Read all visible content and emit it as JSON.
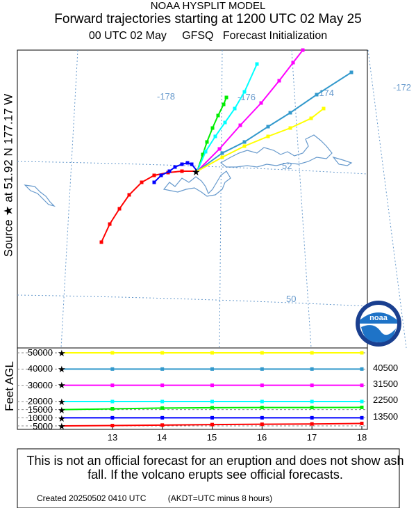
{
  "header": {
    "model": "NOAA HYSPLIT MODEL",
    "title": "Forward trajectories starting at 1200 UTC 02 May 25",
    "init_run": "00 UTC 02 May",
    "init_model": "GFSQ",
    "init_label": "Forecast Initialization"
  },
  "map": {
    "source_label": "Source ★  at   51.92 N  177.17 W",
    "lon_labels": [
      "-178",
      "-176",
      "-174",
      "-172"
    ],
    "lat_labels": [
      "52",
      "50"
    ]
  },
  "vertical": {
    "axis_label": "Feet AGL",
    "left_ticks": [
      "50000",
      "40000",
      "30000",
      "20000",
      "15000",
      "10000",
      "5000"
    ],
    "right_labels": [
      "40500",
      "31500",
      "22500",
      "13500"
    ],
    "x_ticks": [
      "13",
      "14",
      "15",
      "16",
      "17",
      "18"
    ]
  },
  "footer": {
    "disclaimer": "This is not an official forecast for an eruption and does not show ash fall. If the volcano erupts see official forecasts.",
    "created": "Created 20250502 0410 UTC",
    "note": "(AKDT=UTC minus 8 hours)"
  },
  "logo_text": "noaa",
  "colors": {
    "red": "#ff0000",
    "blue": "#0000ff",
    "green": "#00ee00",
    "cyan": "#00ffff",
    "magenta": "#ff00ff",
    "steelblue": "#3399cc",
    "yellow": "#ffff00",
    "grid": "#6699cc"
  },
  "chart_data": {
    "type": "line",
    "title": "Forward trajectories starting at 1200 UTC 02 May 25",
    "xlabel": "",
    "ylabel": "Feet AGL",
    "x": [
      12,
      13,
      14,
      15,
      16,
      17,
      18
    ],
    "ylim": [
      0,
      50000
    ],
    "source": {
      "lat": 51.92,
      "lon": -177.17
    },
    "series": [
      {
        "name": "",
        "color": "red",
        "values": [
          5000,
          5200,
          5500,
          5800,
          6000,
          6200,
          6500
        ]
      },
      {
        "name": "",
        "color": "blue",
        "values": [
          10000,
          10000,
          10000,
          10000,
          10000,
          10000,
          10000
        ]
      },
      {
        "name": "",
        "color": "green",
        "values": [
          15000,
          15500,
          16000,
          16200,
          16300,
          16300,
          16400
        ]
      },
      {
        "name": "",
        "color": "cyan",
        "values": [
          20000,
          20000,
          20000,
          20000,
          20000,
          20000,
          20000
        ]
      },
      {
        "name": "",
        "color": "magenta",
        "values": [
          30000,
          30000,
          30000,
          30000,
          30000,
          30000,
          30000
        ]
      },
      {
        "name": "",
        "color": "steelblue",
        "values": [
          40000,
          40000,
          40000,
          40000,
          40000,
          40000,
          40000
        ]
      },
      {
        "name": "",
        "color": "yellow",
        "values": [
          50000,
          50000,
          50000,
          50000,
          50000,
          50000,
          50000
        ]
      }
    ]
  }
}
